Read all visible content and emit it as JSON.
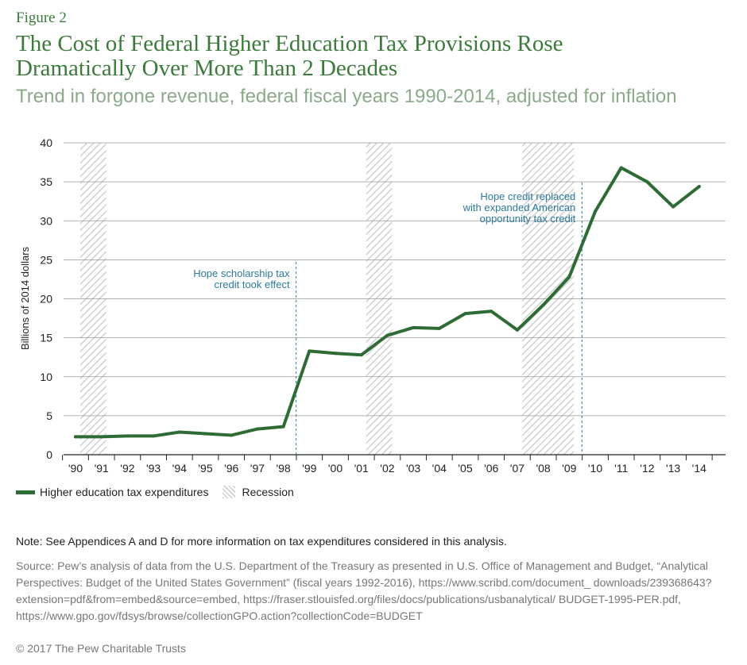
{
  "header": {
    "figure_label": "Figure 2",
    "title_line1": "The Cost of Federal Higher Education Tax Provisions Rose",
    "title_line2": "Dramatically Over More Than 2 Decades",
    "subtitle": "Trend in forgone revenue, federal fiscal years 1990-2014, adjusted for inflation"
  },
  "chart_data": {
    "type": "line",
    "title": "The Cost of Federal Higher Education Tax Provisions Rose Dramatically Over More Than 2 Decades",
    "subtitle": "Trend in forgone revenue, federal fiscal years 1990-2014, adjusted for inflation",
    "xlabel": "",
    "ylabel": "Billions of 2014 dollars",
    "ylim": [
      0,
      40
    ],
    "yticks": [
      0,
      5,
      10,
      15,
      20,
      25,
      30,
      35,
      40
    ],
    "x": [
      1990,
      1991,
      1992,
      1993,
      1994,
      1995,
      1996,
      1997,
      1998,
      1999,
      2000,
      2001,
      2002,
      2003,
      2004,
      2005,
      2006,
      2007,
      2008,
      2009,
      2010,
      2011,
      2012,
      2013,
      2014
    ],
    "x_tick_labels": [
      "'90",
      "'91",
      "'92",
      "'93",
      "'94",
      "'95",
      "'96",
      "'97",
      "'98",
      "'99",
      "'00",
      "'01",
      "'02",
      "'03",
      "'04",
      "'05",
      "'06",
      "'07",
      "'08",
      "'09",
      "'10",
      "'11",
      "'12",
      "'13",
      "'14"
    ],
    "series": [
      {
        "name": "Higher education tax expenditures",
        "color": "#2e6b35",
        "values": [
          2.3,
          2.3,
          2.4,
          2.4,
          2.9,
          2.7,
          2.5,
          3.3,
          3.6,
          13.3,
          13.0,
          12.8,
          15.3,
          16.3,
          16.2,
          18.1,
          18.4,
          16.0,
          19.2,
          22.8,
          31.2,
          36.8,
          35.0,
          31.8,
          34.4
        ]
      }
    ],
    "recessions": [
      {
        "start": 1990,
        "end": 1991
      },
      {
        "start": 2001,
        "end": 2002
      },
      {
        "start": 2007,
        "end": 2009
      }
    ],
    "recession_label": "Recession",
    "annotations": [
      {
        "x": 1998,
        "lines": [
          "Hope scholarship tax",
          "credit took effect"
        ]
      },
      {
        "x": 2009,
        "lines": [
          "Hope credit replaced",
          "with expanded American",
          "opportunity tax credit"
        ]
      }
    ],
    "grid": true,
    "legend_position": "bottom-left"
  },
  "footer": {
    "note": "Note: See Appendices A and D for more information on tax expenditures considered in this analysis.",
    "source": "Source: Pew’s analysis of data from the U.S. Department of the Treasury as presented in U.S. Office of Management and Budget, “Analytical Perspectives: Budget of the United States Government” (fiscal years 1992-2016), https://www.scribd.com/document_ downloads/239368643?extension=pdf&from=embed&source=embed, https://fraser.stlouisfed.org/files/docs/publications/usbanalytical/ BUDGET-1995-PER.pdf, https://www.gpo.gov/fdsys/browse/collectionGPO.action?collectionCode=BUDGET",
    "copyright": "© 2017 The Pew Charitable Trusts"
  }
}
